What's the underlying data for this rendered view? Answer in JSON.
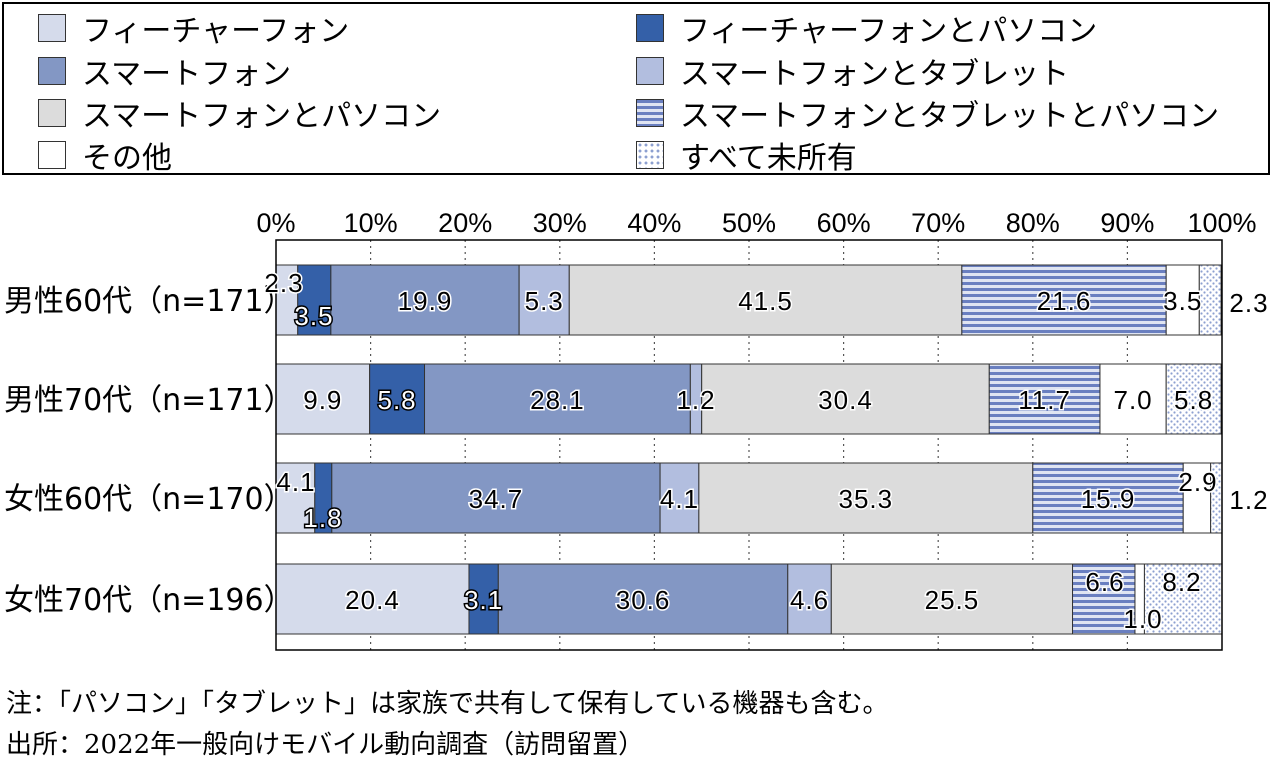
{
  "legend_items": [
    {
      "label": "フィーチャーフォン",
      "fill": "#d5dbeb"
    },
    {
      "label": "スマートフォン",
      "fill": "#8397c4"
    },
    {
      "label": "スマートフォンとパソコン",
      "fill": "#dcdcdc"
    },
    {
      "label": "その他",
      "fill": "#ffffff"
    },
    {
      "label": "フィーチャーフォンとパソコン",
      "fill": "#3460a8"
    },
    {
      "label": "スマートフォンとタブレット",
      "fill": "#b2bedf"
    },
    {
      "label": "スマートフォンとタブレットとパソコン",
      "fill": "stripes"
    },
    {
      "label": "すべて未所有",
      "fill": "dots"
    }
  ],
  "chart_data": {
    "type": "bar",
    "orientation": "horizontal",
    "stacked": true,
    "categories": [
      "男性60代（n=171）",
      "男性70代（n=171）",
      "女性60代（n=170）",
      "女性70代（n=196）"
    ],
    "x_ticks": [
      "0%",
      "10%",
      "20%",
      "30%",
      "40%",
      "50%",
      "60%",
      "70%",
      "80%",
      "90%",
      "100%"
    ],
    "xlim": [
      0,
      100
    ],
    "grid": true,
    "legend_position": "top",
    "series": [
      {
        "name": "フィーチャーフォン",
        "values": [
          2.3,
          9.9,
          4.1,
          20.4
        ]
      },
      {
        "name": "フィーチャーフォンとパソコン",
        "values": [
          3.5,
          5.8,
          1.8,
          3.1
        ]
      },
      {
        "name": "スマートフォン",
        "values": [
          19.9,
          28.1,
          34.7,
          30.6
        ]
      },
      {
        "name": "スマートフォンとタブレット",
        "values": [
          5.3,
          1.2,
          4.1,
          4.6
        ]
      },
      {
        "name": "スマートフォンとパソコン",
        "values": [
          41.5,
          30.4,
          35.3,
          25.5
        ]
      },
      {
        "name": "スマートフォンとタブレットとパソコン",
        "values": [
          21.6,
          11.7,
          15.9,
          6.6
        ]
      },
      {
        "name": "その他",
        "values": [
          3.5,
          7.0,
          2.9,
          1.0
        ]
      },
      {
        "name": "すべて未所有",
        "values": [
          2.3,
          5.8,
          1.2,
          8.2
        ]
      }
    ],
    "data_labels": [
      [
        "2.3",
        "3.5",
        "19.9",
        "5.3",
        "41.5",
        "21.6",
        "3.5",
        "2.3"
      ],
      [
        "9.9",
        "5.8",
        "28.1",
        "1.2",
        "30.4",
        "11.7",
        "7.0",
        "5.8"
      ],
      [
        "4.1",
        "1.8",
        "34.7",
        "4.1",
        "35.3",
        "15.9",
        "2.9",
        "1.2"
      ],
      [
        "20.4",
        "3.1",
        "30.6",
        "4.6",
        "25.5",
        "6.6",
        "1.0",
        "8.2"
      ]
    ]
  },
  "notes": {
    "note": "注：「パソコン」「タブレット」は家族で共有して保有している機器も含む。",
    "source": "出所：2022年一般向けモバイル動向調査（訪問留置）"
  }
}
